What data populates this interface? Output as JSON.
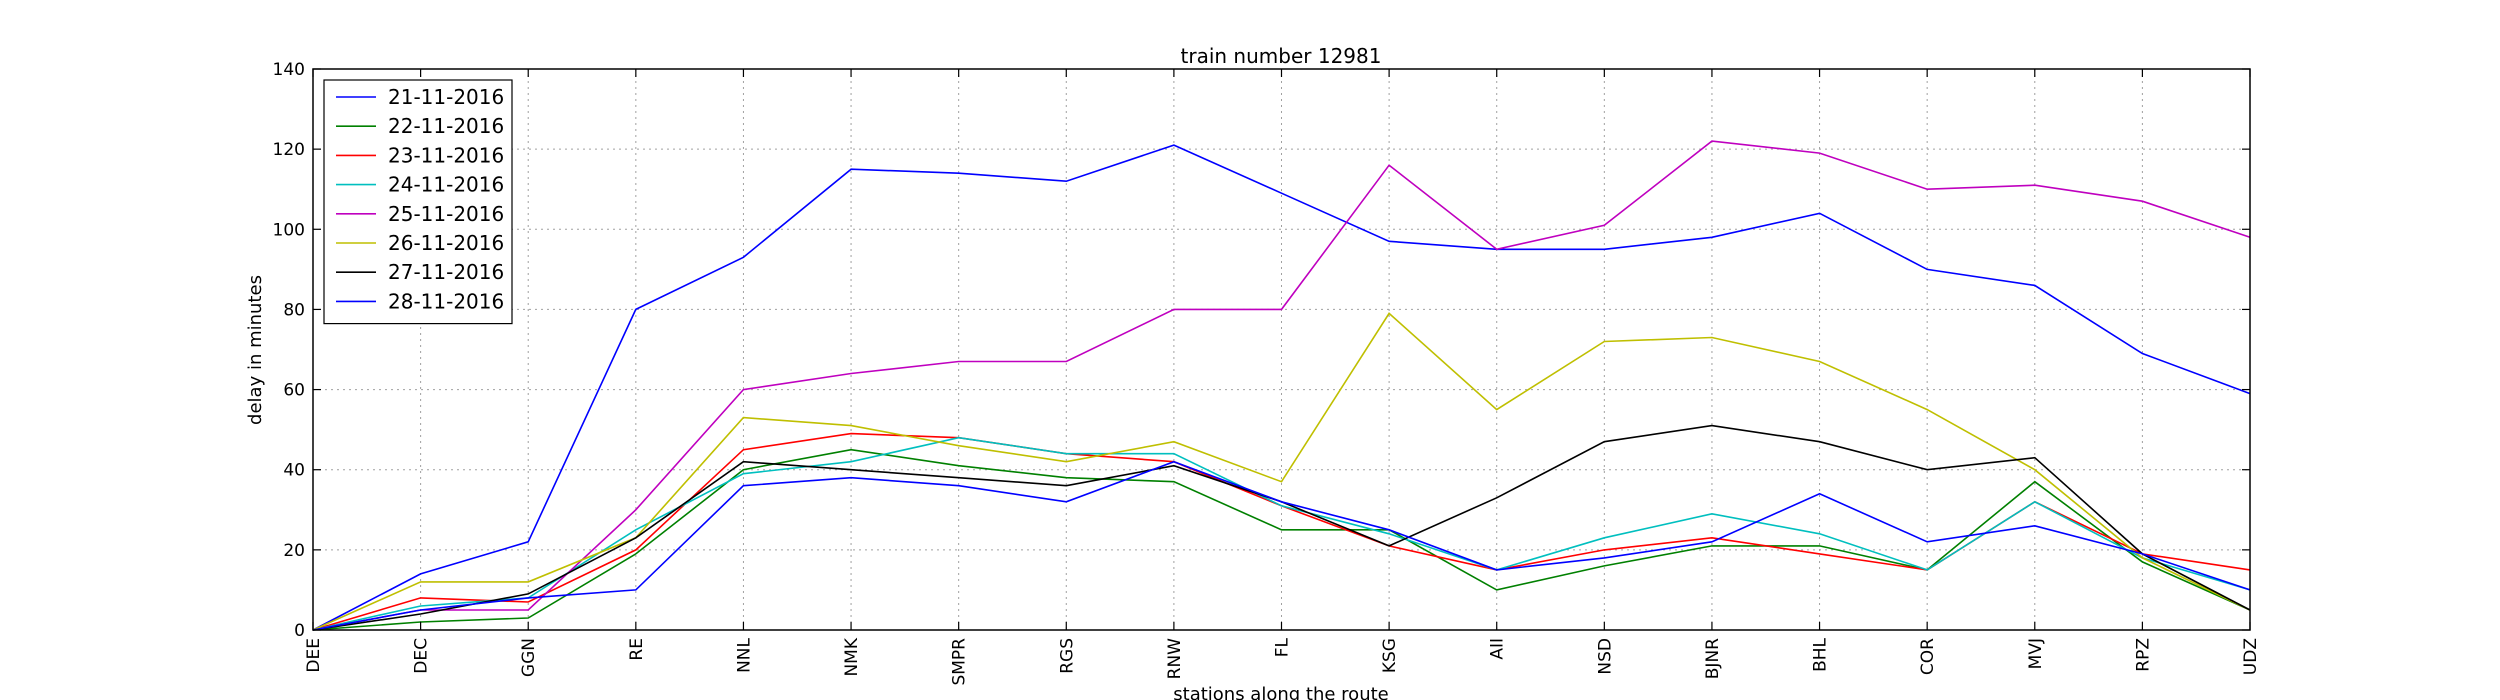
{
  "chart_data": {
    "type": "line",
    "title": "train number 12981",
    "xlabel": "stations along the route",
    "ylabel": "delay in minutes",
    "ylim": [
      0,
      140
    ],
    "yticks": [
      0,
      20,
      40,
      60,
      80,
      100,
      120,
      140
    ],
    "grid": true,
    "legend_position": "top-left",
    "categories": [
      "DEE",
      "DEC",
      "GGN",
      "RE",
      "NNL",
      "NMK",
      "SMPR",
      "RGS",
      "RNW",
      "FL",
      "KSG",
      "AII",
      "NSD",
      "BJNR",
      "BHL",
      "COR",
      "MVJ",
      "RPZ",
      "UDZ"
    ],
    "series": [
      {
        "name": "21-11-2016",
        "color": "#0000ff",
        "values": [
          0,
          14,
          22,
          80,
          93,
          115,
          114,
          112,
          121,
          109,
          97,
          95,
          95,
          98,
          104,
          90,
          86,
          69,
          59
        ]
      },
      {
        "name": "22-11-2016",
        "color": "#008000",
        "values": [
          0,
          2,
          3,
          19,
          40,
          45,
          41,
          38,
          37,
          25,
          25,
          10,
          16,
          21,
          21,
          15,
          37,
          17,
          5
        ]
      },
      {
        "name": "23-11-2016",
        "color": "#ff0000",
        "values": [
          0,
          8,
          7,
          20,
          45,
          49,
          48,
          44,
          42,
          31,
          21,
          15,
          20,
          23,
          19,
          15,
          32,
          19,
          15
        ]
      },
      {
        "name": "24-11-2016",
        "color": "#00bfbf",
        "values": [
          0,
          6,
          8,
          25,
          39,
          42,
          48,
          44,
          44,
          31,
          24,
          15,
          23,
          29,
          24,
          15,
          32,
          18,
          10
        ]
      },
      {
        "name": "25-11-2016",
        "color": "#bf00bf",
        "values": [
          0,
          5,
          5,
          30,
          60,
          64,
          67,
          67,
          80,
          80,
          116,
          95,
          101,
          122,
          119,
          110,
          111,
          107,
          98
        ]
      },
      {
        "name": "26-11-2016",
        "color": "#bfbf00",
        "values": [
          0,
          12,
          12,
          23,
          53,
          51,
          46,
          42,
          47,
          37,
          79,
          55,
          72,
          73,
          67,
          55,
          40,
          18,
          5
        ]
      },
      {
        "name": "27-11-2016",
        "color": "#000000",
        "values": [
          0,
          4,
          9,
          23,
          42,
          40,
          38,
          36,
          41,
          32,
          21,
          33,
          47,
          51,
          47,
          40,
          43,
          19,
          5
        ]
      },
      {
        "name": "28-11-2016",
        "color": "#0000ff",
        "values": [
          0,
          5,
          8,
          10,
          36,
          38,
          36,
          32,
          42,
          32,
          25,
          15,
          18,
          22,
          34,
          22,
          26,
          19,
          10
        ]
      }
    ]
  }
}
